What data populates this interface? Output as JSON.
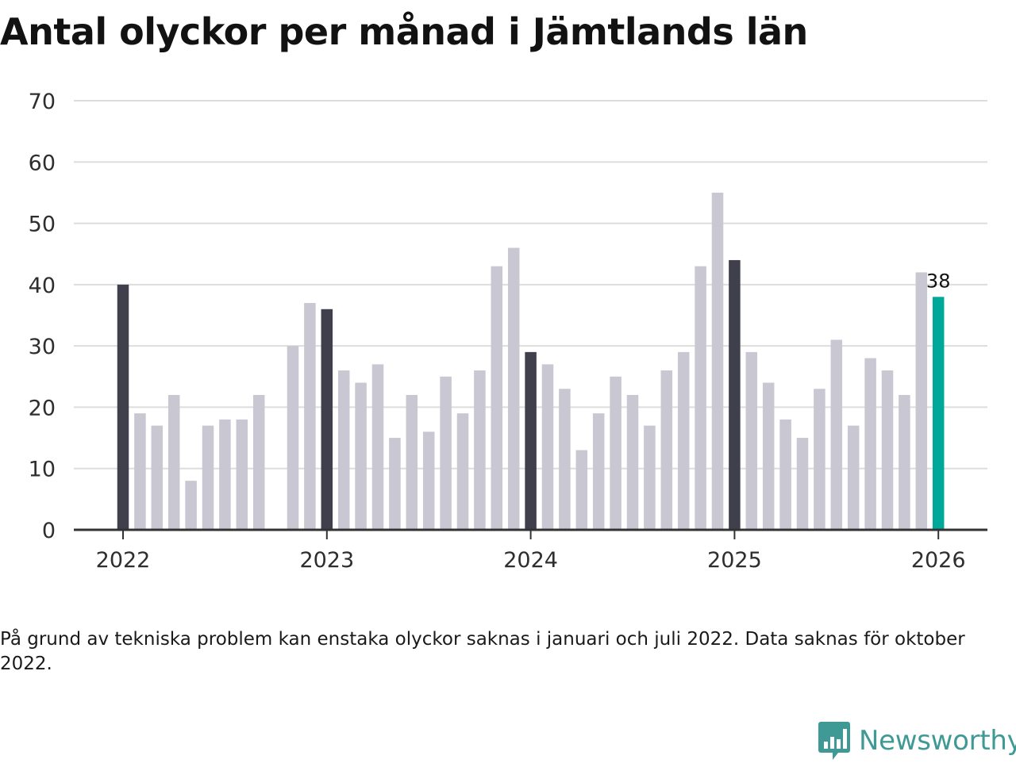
{
  "title": "Antal olyckor per månad i Jämtlands län",
  "note": "På grund av tekniska problem kan enstaka olyckor saknas i januari och juli 2022. Data saknas för oktober 2022.",
  "logo": {
    "text": "Newsworthy",
    "icon": "newsworthy-logo-icon"
  },
  "colors": {
    "january": "#403f4c",
    "regular": "#c8c7d2",
    "highlight": "#00a89a",
    "grid": "#dddddd",
    "axis": "#333333"
  },
  "chart_data": {
    "type": "bar",
    "title": "Antal olyckor per månad i Jämtlands län",
    "xlabel": "",
    "ylabel": "",
    "ylim": [
      0,
      70
    ],
    "yticks": [
      "0",
      "10",
      "20",
      "30",
      "40",
      "50",
      "60",
      "70"
    ],
    "year_ticks": [
      {
        "label": "2022",
        "index": 0
      },
      {
        "label": "2023",
        "index": 12
      },
      {
        "label": "2024",
        "index": 24
      },
      {
        "label": "2025",
        "index": 36
      },
      {
        "label": "2026",
        "index": 48
      }
    ],
    "categories": [
      "2022-01",
      "2022-02",
      "2022-03",
      "2022-04",
      "2022-05",
      "2022-06",
      "2022-07",
      "2022-08",
      "2022-09",
      "2022-10",
      "2022-11",
      "2022-12",
      "2023-01",
      "2023-02",
      "2023-03",
      "2023-04",
      "2023-05",
      "2023-06",
      "2023-07",
      "2023-08",
      "2023-09",
      "2023-10",
      "2023-11",
      "2023-12",
      "2024-01",
      "2024-02",
      "2024-03",
      "2024-04",
      "2024-05",
      "2024-06",
      "2024-07",
      "2024-08",
      "2024-09",
      "2024-10",
      "2024-11",
      "2024-12",
      "2025-01",
      "2025-02",
      "2025-03",
      "2025-04",
      "2025-05",
      "2025-06",
      "2025-07",
      "2025-08",
      "2025-09",
      "2025-10",
      "2025-11",
      "2025-12",
      "2026-01"
    ],
    "values": [
      40,
      19,
      17,
      22,
      8,
      17,
      18,
      18,
      22,
      null,
      30,
      37,
      36,
      26,
      24,
      27,
      15,
      22,
      16,
      25,
      19,
      26,
      43,
      46,
      29,
      27,
      23,
      13,
      19,
      25,
      22,
      17,
      26,
      29,
      43,
      55,
      44,
      29,
      24,
      18,
      15,
      23,
      31,
      17,
      28,
      26,
      22,
      42,
      38
    ],
    "highlight_index": 48,
    "data_labels": [
      {
        "index": 48,
        "text": "38"
      }
    ]
  }
}
